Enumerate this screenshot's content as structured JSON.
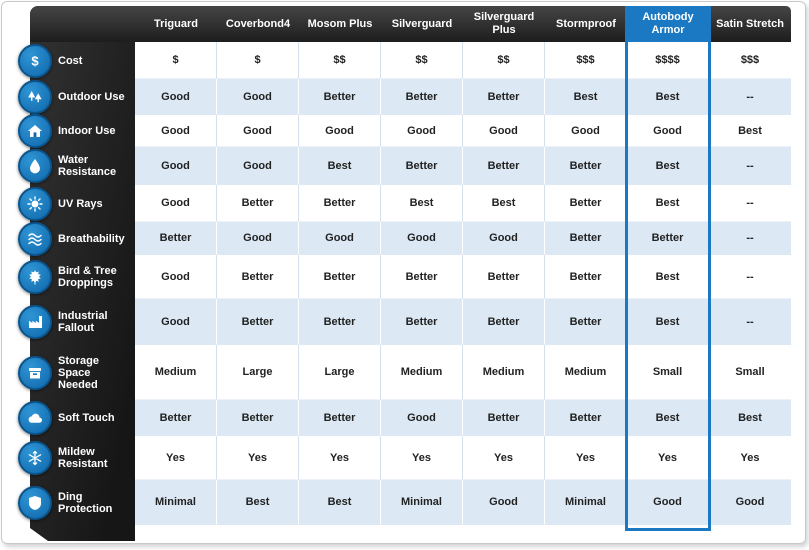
{
  "chart_data": {
    "type": "table",
    "columns": [
      "Triguard",
      "Coverbond4",
      "Mosom Plus",
      "Silverguard",
      "Silverguard Plus",
      "Stormproof",
      "Autobody Armor",
      "Satin Stretch"
    ],
    "highlighted_column": "Autobody Armor",
    "rows": [
      {
        "label": "Cost",
        "icon": "dollar-icon",
        "values": [
          "$",
          "$",
          "$$",
          "$$",
          "$$",
          "$$$",
          "$$$$",
          "$$$"
        ]
      },
      {
        "label": "Outdoor Use",
        "icon": "trees-icon",
        "values": [
          "Good",
          "Good",
          "Better",
          "Better",
          "Better",
          "Best",
          "Best",
          "--"
        ]
      },
      {
        "label": "Indoor Use",
        "icon": "house-icon",
        "values": [
          "Good",
          "Good",
          "Good",
          "Good",
          "Good",
          "Good",
          "Good",
          "Best"
        ]
      },
      {
        "label": "Water Resistance",
        "icon": "water-drop-icon",
        "values": [
          "Good",
          "Good",
          "Best",
          "Better",
          "Better",
          "Better",
          "Best",
          "--"
        ]
      },
      {
        "label": "UV Rays",
        "icon": "sun-icon",
        "values": [
          "Good",
          "Better",
          "Better",
          "Best",
          "Best",
          "Better",
          "Best",
          "--"
        ]
      },
      {
        "label": "Breathability",
        "icon": "airflow-icon",
        "values": [
          "Better",
          "Good",
          "Good",
          "Good",
          "Good",
          "Better",
          "Better",
          "--"
        ]
      },
      {
        "label": "Bird & Tree Droppings",
        "icon": "leaf-icon",
        "values": [
          "Good",
          "Better",
          "Better",
          "Better",
          "Better",
          "Better",
          "Best",
          "--"
        ]
      },
      {
        "label": "Industrial Fallout",
        "icon": "factory-icon",
        "values": [
          "Good",
          "Better",
          "Better",
          "Better",
          "Better",
          "Better",
          "Best",
          "--"
        ]
      },
      {
        "label": "Storage Space Needed",
        "icon": "storage-box-icon",
        "values": [
          "Medium",
          "Large",
          "Large",
          "Medium",
          "Medium",
          "Medium",
          "Small",
          "Small"
        ]
      },
      {
        "label": "Soft Touch",
        "icon": "cloud-icon",
        "values": [
          "Better",
          "Better",
          "Better",
          "Good",
          "Better",
          "Better",
          "Best",
          "Best"
        ]
      },
      {
        "label": "Mildew Resistant",
        "icon": "snowflake-icon",
        "values": [
          "Yes",
          "Yes",
          "Yes",
          "Yes",
          "Yes",
          "Yes",
          "Yes",
          "Yes"
        ]
      },
      {
        "label": "Ding Protection",
        "icon": "shield-icon",
        "values": [
          "Minimal",
          "Best",
          "Best",
          "Minimal",
          "Good",
          "Minimal",
          "Good",
          "Good"
        ]
      }
    ]
  },
  "colors": {
    "highlight": "#1b78c2",
    "header_bg": "#2a2a2a",
    "row_alt": "#dce9f5",
    "icon_blue": "#2f95d5"
  }
}
